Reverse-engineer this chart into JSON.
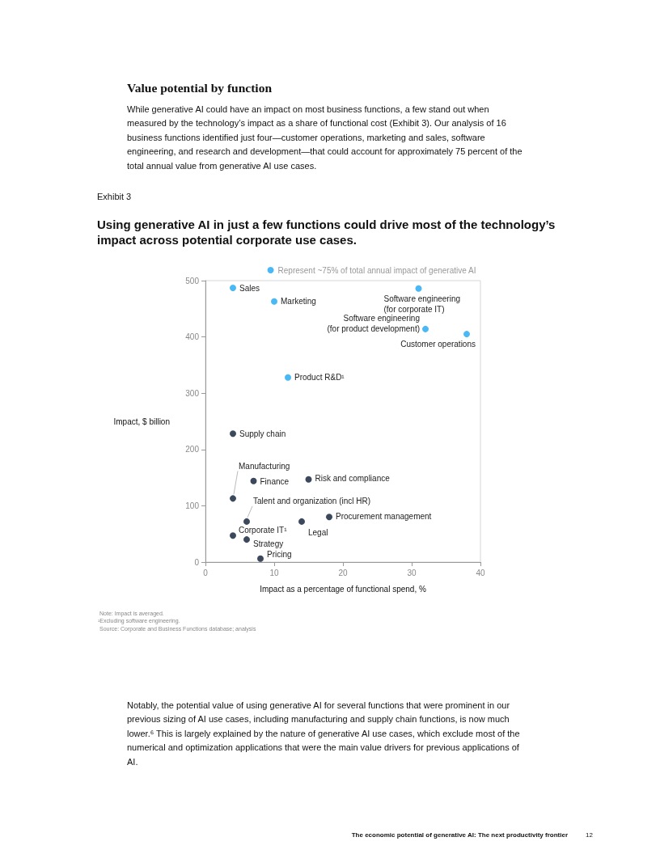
{
  "chart_data": {
    "type": "scatter",
    "title": "Using generative AI in just a few functions could drive most of the technology’s impact across potential corporate use cases.",
    "xlabel": "Impact as a percentage of functional spend, %",
    "ylabel": "Impact, $ billion",
    "xlim": [
      0,
      40
    ],
    "xticks": [
      0,
      10,
      20,
      30,
      40
    ],
    "ylim": [
      0,
      500
    ],
    "yticks": [
      0,
      100,
      200,
      300,
      400,
      500
    ],
    "grid": false,
    "legend": "top right",
    "marker": "circle",
    "series": [
      {
        "name": "Represent ~75% of total annual impact of generative AI",
        "color": "#1ba6f2",
        "x": [
          4,
          10,
          31,
          32,
          38,
          12
        ],
        "values": [
          487,
          463,
          486,
          414,
          405,
          328
        ]
      },
      {
        "color": "#0b1a33",
        "x": [
          4,
          4,
          7,
          15,
          6,
          18,
          14,
          4,
          6,
          8
        ],
        "values": [
          228,
          113,
          144,
          147,
          72,
          80,
          72,
          47,
          40,
          6
        ]
      }
    ],
    "annotations": [
      "Value potential by function",
      "While generative AI could have an impact on most business functions, a few stand out when measured by the technology’s impact as a share of functional cost (Exhibit 3). Our analysis of 16 business functions identified just four—customer operations, marketing and sales, software engineering, and research and development—that could account for approximately 75 percent of the total annual value from generative AI use cases.",
      "Exhibit 3",
      "Note: Impact is averaged.",
      "¹Excluding software engineering.",
      "Source: Corporate and Business Functions database; analysis",
      "Notably, the potential value of using generative AI for several functions that were prominent in our previous sizing of AI use cases, including manufacturing and supply chain functions, is now much lower.⁶ This is largely explained by the nature of generative AI use cases, which exclude most of the numerical and optimization applications that were the main value drivers for previous applications of AI.",
      "The economic potential of generative AI: The next productivity frontier",
      "12",
      {
        "text": "Sales",
        "x": 4,
        "y": 487
      },
      {
        "text": "Marketing",
        "x": 10,
        "y": 463
      },
      {
        "text": "Software engineering\n(for corporate IT)",
        "x": 31,
        "y": 486
      },
      {
        "text": "Software engineering\n(for product development)",
        "x": 32,
        "y": 414
      },
      {
        "text": "Customer operations",
        "x": 38,
        "y": 405
      },
      {
        "text": "Product R&D¹",
        "x": 12,
        "y": 328
      },
      {
        "text": "Supply chain",
        "x": 4,
        "y": 228
      },
      {
        "text": "Manufacturing",
        "x": 4,
        "y": 113
      },
      {
        "text": "Finance",
        "x": 7,
        "y": 144
      },
      {
        "text": "Risk and compliance",
        "x": 15,
        "y": 147
      },
      {
        "text": "Talent and organization (incl HR)",
        "x": 6,
        "y": 72
      },
      {
        "text": "Procurement management",
        "x": 18,
        "y": 80
      },
      {
        "text": "Legal",
        "x": 14,
        "y": 72
      },
      {
        "text": "Corporate IT¹",
        "x": 4,
        "y": 47
      },
      {
        "text": "Strategy",
        "x": 6,
        "y": 40
      },
      {
        "text": "Pricing",
        "x": 8,
        "y": 6
      }
    ]
  }
}
